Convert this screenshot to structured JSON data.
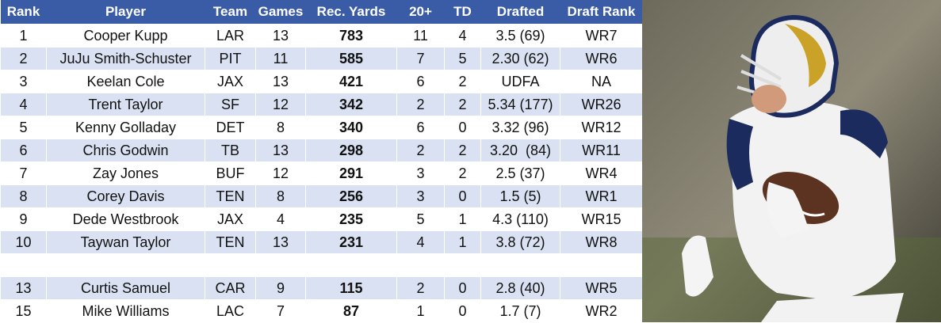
{
  "table": {
    "header": [
      "Rank",
      "Player",
      "Team",
      "Games",
      "Rec. Yards",
      "20+",
      "TD",
      "Drafted",
      "Draft Rank"
    ],
    "rows": [
      [
        1,
        "Cooper Kupp",
        "LAR",
        13,
        783,
        11,
        4,
        "3.5 (69)",
        "WR7"
      ],
      [
        2,
        "JuJu Smith-Schuster",
        "PIT",
        11,
        585,
        7,
        5,
        "2.30 (62)",
        "WR6"
      ],
      [
        3,
        "Keelan Cole",
        "JAX",
        13,
        421,
        6,
        2,
        "UDFA",
        "NA"
      ],
      [
        4,
        "Trent Taylor",
        "SF",
        12,
        342,
        2,
        2,
        "5.34 (177)",
        "WR26"
      ],
      [
        5,
        "Kenny Golladay",
        "DET",
        8,
        340,
        6,
        0,
        "3.32 (96)",
        "WR12"
      ],
      [
        6,
        "Chris Godwin",
        "TB",
        13,
        298,
        2,
        2,
        "3.20  (84)",
        "WR11"
      ],
      [
        7,
        "Zay Jones",
        "BUF",
        12,
        291,
        3,
        2,
        "2.5 (37)",
        "WR4"
      ],
      [
        8,
        "Corey Davis",
        "TEN",
        8,
        256,
        3,
        0,
        "1.5 (5)",
        "WR1"
      ],
      [
        9,
        "Dede Westbrook",
        "JAX",
        4,
        235,
        5,
        1,
        "4.3 (110)",
        "WR15"
      ],
      [
        10,
        "Taywan Taylor",
        "TEN",
        13,
        231,
        4,
        1,
        "3.8 (72)",
        "WR8"
      ],
      [
        13,
        "Curtis Samuel",
        "CAR",
        9,
        115,
        2,
        0,
        "2.8 (40)",
        "WR5"
      ],
      [
        15,
        "Mike Williams",
        "LAC",
        7,
        87,
        1,
        0,
        "1.7 (7)",
        "WR2"
      ]
    ]
  }
}
